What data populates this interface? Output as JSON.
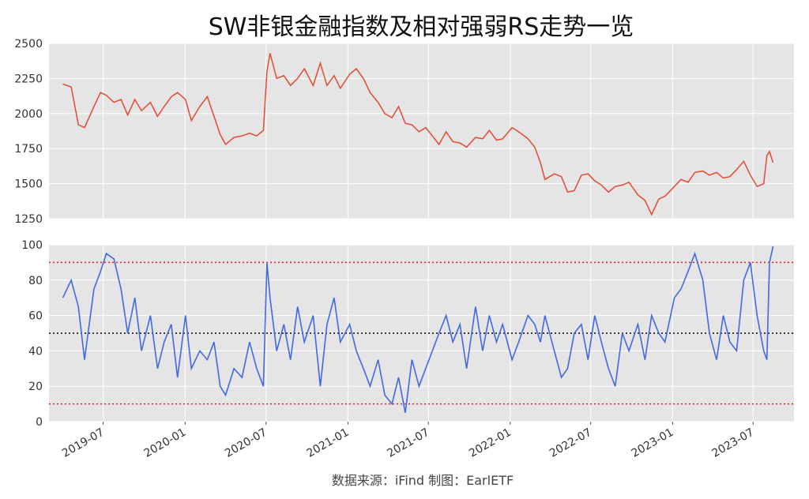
{
  "title": "SW非银金融指数及相对强弱RS走势一览",
  "source_note": "数据来源：iFind 制图：EarlETF",
  "colors": {
    "background": "#E5E5E5",
    "grid": "#FFFFFF",
    "index_line": "#E24A33",
    "rs_line": "#4169E1",
    "ref_line_outer": "#DD2222",
    "ref_line_mid": "#000000"
  },
  "chart_data": [
    {
      "type": "line",
      "panel": "index",
      "xlim": [
        "2019-03-01",
        "2023-10-01"
      ],
      "ylim": [
        1250,
        2500
      ],
      "yticks": [
        1250,
        1500,
        1750,
        2000,
        2250,
        2500
      ],
      "grid": true,
      "series": [
        {
          "x": [
            "2019-04-01",
            "2019-04-20",
            "2019-05-06",
            "2019-05-20",
            "2019-06-10",
            "2019-06-25",
            "2019-07-08",
            "2019-07-25",
            "2019-08-10",
            "2019-08-25",
            "2019-09-10",
            "2019-09-25",
            "2019-10-15",
            "2019-10-31",
            "2019-11-15",
            "2019-12-01",
            "2019-12-15",
            "2020-01-02",
            "2020-01-15",
            "2020-02-03",
            "2020-02-20",
            "2020-03-06",
            "2020-03-20",
            "2020-04-01",
            "2020-04-20",
            "2020-05-08",
            "2020-05-25",
            "2020-06-10",
            "2020-06-25",
            "2020-07-03",
            "2020-07-10",
            "2020-07-25",
            "2020-08-10",
            "2020-08-25",
            "2020-09-10",
            "2020-09-25",
            "2020-10-15",
            "2020-10-31",
            "2020-11-15",
            "2020-12-01",
            "2020-12-15",
            "2021-01-05",
            "2021-01-20",
            "2021-02-05",
            "2021-02-20",
            "2021-03-10",
            "2021-03-25",
            "2021-04-10",
            "2021-04-25",
            "2021-05-10",
            "2021-05-25",
            "2021-06-10",
            "2021-06-25",
            "2021-07-10",
            "2021-07-25",
            "2021-08-10",
            "2021-08-25",
            "2021-09-10",
            "2021-09-25",
            "2021-10-15",
            "2021-10-31",
            "2021-11-15",
            "2021-12-01",
            "2021-12-15",
            "2022-01-05",
            "2022-01-20",
            "2022-02-10",
            "2022-02-25",
            "2022-03-10",
            "2022-03-20",
            "2022-04-10",
            "2022-04-26",
            "2022-05-10",
            "2022-05-25",
            "2022-06-10",
            "2022-06-25",
            "2022-07-10",
            "2022-07-25",
            "2022-08-10",
            "2022-08-25",
            "2022-09-10",
            "2022-09-25",
            "2022-10-15",
            "2022-10-31",
            "2022-11-15",
            "2022-12-01",
            "2022-12-15",
            "2023-01-05",
            "2023-01-20",
            "2023-02-05",
            "2023-02-20",
            "2023-03-10",
            "2023-03-25",
            "2023-04-10",
            "2023-04-25",
            "2023-05-10",
            "2023-05-25",
            "2023-06-10",
            "2023-06-25",
            "2023-07-10",
            "2023-07-25",
            "2023-08-01",
            "2023-08-07",
            "2023-08-15"
          ],
          "values": [
            2210,
            2190,
            1920,
            1900,
            2050,
            2150,
            2130,
            2080,
            2100,
            1990,
            2100,
            2020,
            2080,
            1980,
            2050,
            2120,
            2150,
            2100,
            1950,
            2050,
            2120,
            1980,
            1850,
            1780,
            1830,
            1840,
            1860,
            1840,
            1880,
            2300,
            2430,
            2250,
            2270,
            2200,
            2250,
            2320,
            2200,
            2360,
            2200,
            2270,
            2180,
            2280,
            2320,
            2250,
            2150,
            2080,
            2000,
            1970,
            2050,
            1930,
            1920,
            1870,
            1900,
            1840,
            1780,
            1870,
            1800,
            1790,
            1760,
            1830,
            1820,
            1880,
            1810,
            1820,
            1900,
            1870,
            1820,
            1760,
            1650,
            1530,
            1570,
            1550,
            1440,
            1450,
            1560,
            1570,
            1520,
            1490,
            1440,
            1480,
            1490,
            1510,
            1420,
            1380,
            1280,
            1390,
            1410,
            1480,
            1530,
            1510,
            1580,
            1590,
            1560,
            1580,
            1540,
            1550,
            1600,
            1660,
            1560,
            1480,
            1500,
            1700,
            1730,
            1650
          ]
        }
      ]
    },
    {
      "type": "line",
      "panel": "rs",
      "xlim": [
        "2019-03-01",
        "2023-10-01"
      ],
      "ylim": [
        0,
        100
      ],
      "yticks": [
        0,
        20,
        40,
        60,
        80,
        100
      ],
      "xtick_labels": [
        "2019-07",
        "2020-01",
        "2020-07",
        "2021-01",
        "2021-07",
        "2022-01",
        "2022-07",
        "2023-01",
        "2023-07"
      ],
      "grid": true,
      "reference_lines": [
        90,
        50,
        10
      ],
      "series": [
        {
          "x": [
            "2019-04-01",
            "2019-04-20",
            "2019-05-06",
            "2019-05-20",
            "2019-06-10",
            "2019-06-25",
            "2019-07-08",
            "2019-07-25",
            "2019-08-10",
            "2019-08-25",
            "2019-09-10",
            "2019-09-25",
            "2019-10-15",
            "2019-10-31",
            "2019-11-15",
            "2019-12-01",
            "2019-12-15",
            "2020-01-02",
            "2020-01-15",
            "2020-02-03",
            "2020-02-20",
            "2020-03-06",
            "2020-03-20",
            "2020-04-01",
            "2020-04-20",
            "2020-05-08",
            "2020-05-25",
            "2020-06-10",
            "2020-06-25",
            "2020-07-03",
            "2020-07-10",
            "2020-07-25",
            "2020-08-10",
            "2020-08-25",
            "2020-09-10",
            "2020-09-25",
            "2020-10-15",
            "2020-10-31",
            "2020-11-15",
            "2020-12-01",
            "2020-12-15",
            "2021-01-05",
            "2021-01-20",
            "2021-02-05",
            "2021-02-20",
            "2021-03-10",
            "2021-03-25",
            "2021-04-10",
            "2021-04-25",
            "2021-05-10",
            "2021-05-25",
            "2021-06-10",
            "2021-06-25",
            "2021-07-10",
            "2021-07-25",
            "2021-08-10",
            "2021-08-25",
            "2021-09-10",
            "2021-09-25",
            "2021-10-15",
            "2021-10-31",
            "2021-11-15",
            "2021-12-01",
            "2021-12-15",
            "2022-01-05",
            "2022-01-20",
            "2022-02-10",
            "2022-02-25",
            "2022-03-10",
            "2022-03-20",
            "2022-04-10",
            "2022-04-26",
            "2022-05-10",
            "2022-05-25",
            "2022-06-10",
            "2022-06-25",
            "2022-07-10",
            "2022-07-25",
            "2022-08-10",
            "2022-08-25",
            "2022-09-10",
            "2022-09-25",
            "2022-10-15",
            "2022-10-31",
            "2022-11-15",
            "2022-12-01",
            "2022-12-15",
            "2023-01-05",
            "2023-01-20",
            "2023-02-05",
            "2023-02-20",
            "2023-03-10",
            "2023-03-25",
            "2023-04-10",
            "2023-04-25",
            "2023-05-10",
            "2023-05-25",
            "2023-06-10",
            "2023-06-25",
            "2023-07-10",
            "2023-07-25",
            "2023-08-01",
            "2023-08-07",
            "2023-08-15"
          ],
          "values": [
            70,
            80,
            65,
            35,
            75,
            85,
            95,
            92,
            75,
            50,
            70,
            40,
            60,
            30,
            45,
            55,
            25,
            60,
            30,
            40,
            35,
            45,
            20,
            15,
            30,
            25,
            45,
            30,
            20,
            90,
            70,
            40,
            55,
            35,
            65,
            45,
            60,
            20,
            55,
            70,
            45,
            55,
            40,
            30,
            20,
            35,
            15,
            10,
            25,
            5,
            35,
            20,
            30,
            40,
            50,
            60,
            45,
            55,
            30,
            65,
            40,
            60,
            45,
            55,
            35,
            45,
            60,
            55,
            45,
            60,
            40,
            25,
            30,
            50,
            55,
            35,
            60,
            45,
            30,
            20,
            50,
            40,
            55,
            35,
            60,
            50,
            45,
            70,
            75,
            85,
            95,
            80,
            50,
            35,
            60,
            45,
            40,
            80,
            90,
            60,
            40,
            35,
            90,
            99
          ]
        }
      ]
    }
  ]
}
